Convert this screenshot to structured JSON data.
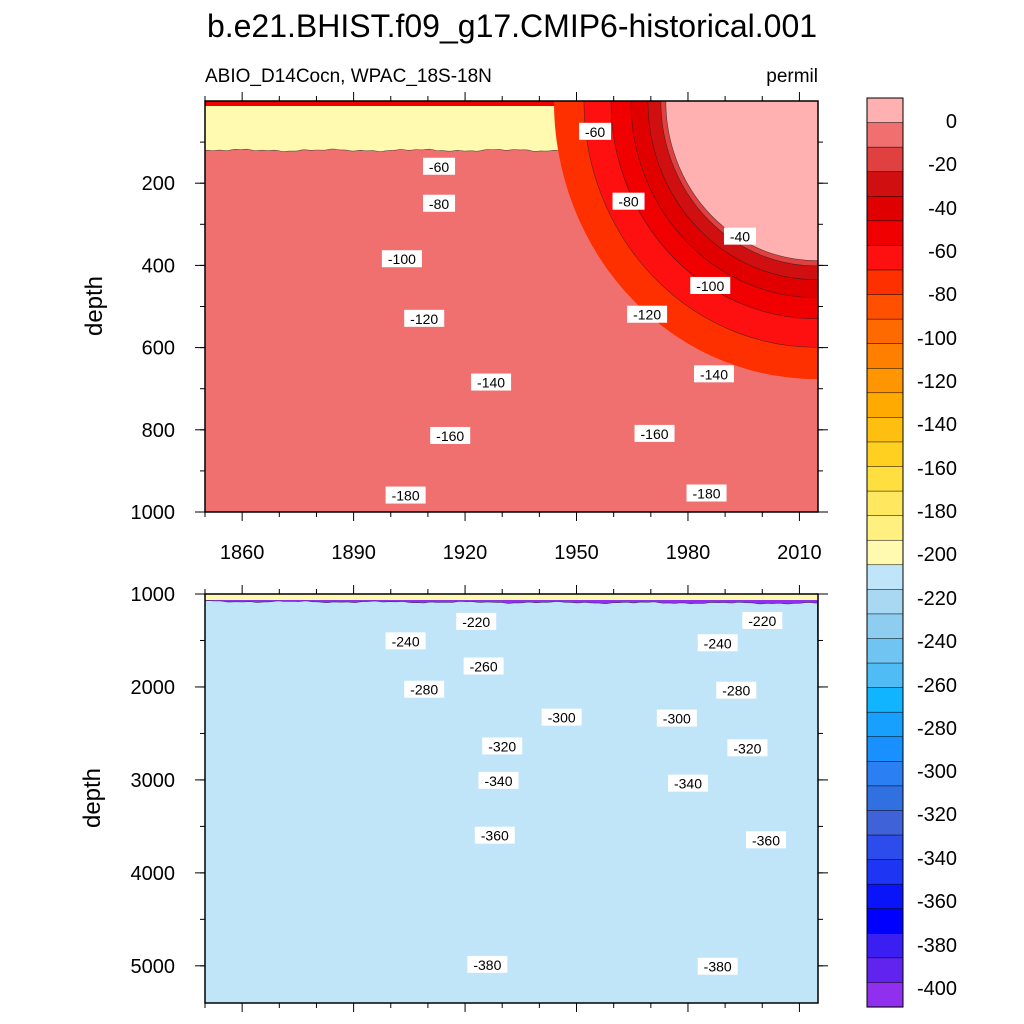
{
  "chart_data": {
    "type": "heatmap",
    "title": "b.e21.BHIST.f09_g17.CMIP6-historical.001",
    "subtitle_left": "ABIO_D14Cocn, WPAC_18S-18N",
    "subtitle_right": "permil",
    "x_range": [
      1850,
      2015
    ],
    "x_ticks": [
      1860,
      1890,
      1920,
      1950,
      1980,
      2010
    ],
    "upper_panel": {
      "ylabel": "depth",
      "ylim": [
        0,
        1000
      ],
      "y_ticks": [
        200,
        400,
        600,
        800,
        1000
      ],
      "contour_labels": [
        {
          "text": "-60",
          "x": 1913,
          "y": 160
        },
        {
          "text": "-60",
          "x": 1955,
          "y": 75
        },
        {
          "text": "-80",
          "x": 1913,
          "y": 250
        },
        {
          "text": "-80",
          "x": 1964,
          "y": 245
        },
        {
          "text": "-40",
          "x": 1994,
          "y": 330
        },
        {
          "text": "-100",
          "x": 1903,
          "y": 385
        },
        {
          "text": "-100",
          "x": 1986,
          "y": 450
        },
        {
          "text": "-120",
          "x": 1909,
          "y": 530
        },
        {
          "text": "-120",
          "x": 1969,
          "y": 520
        },
        {
          "text": "-140",
          "x": 1927,
          "y": 685
        },
        {
          "text": "-140",
          "x": 1987,
          "y": 665
        },
        {
          "text": "-160",
          "x": 1916,
          "y": 815
        },
        {
          "text": "-160",
          "x": 1971,
          "y": 810
        },
        {
          "text": "-180",
          "x": 1904,
          "y": 960
        },
        {
          "text": "-180",
          "x": 1985,
          "y": 955
        }
      ]
    },
    "lower_panel": {
      "ylabel": "depth",
      "ylim": [
        1000,
        5400
      ],
      "y_ticks": [
        1000,
        2000,
        3000,
        4000,
        5000
      ],
      "contour_labels": [
        {
          "text": "-220",
          "x": 1923,
          "y": 1300
        },
        {
          "text": "-220",
          "x": 2000,
          "y": 1290
        },
        {
          "text": "-240",
          "x": 1904,
          "y": 1510
        },
        {
          "text": "-240",
          "x": 1988,
          "y": 1530
        },
        {
          "text": "-260",
          "x": 1925,
          "y": 1780
        },
        {
          "text": "-280",
          "x": 1909,
          "y": 2030
        },
        {
          "text": "-280",
          "x": 1993,
          "y": 2040
        },
        {
          "text": "-300",
          "x": 1946,
          "y": 2330
        },
        {
          "text": "-300",
          "x": 1977,
          "y": 2340
        },
        {
          "text": "-320",
          "x": 1930,
          "y": 2640
        },
        {
          "text": "-320",
          "x": 1996,
          "y": 2660
        },
        {
          "text": "-340",
          "x": 1929,
          "y": 3010
        },
        {
          "text": "-340",
          "x": 1980,
          "y": 3040
        },
        {
          "text": "-360",
          "x": 1928,
          "y": 3600
        },
        {
          "text": "-360",
          "x": 2001,
          "y": 3650
        },
        {
          "text": "-380",
          "x": 1926,
          "y": 4990
        },
        {
          "text": "-380",
          "x": 1988,
          "y": 5010
        }
      ]
    },
    "colorbar": {
      "levels": [
        0,
        -20,
        -40,
        -60,
        -80,
        -100,
        -120,
        -140,
        -160,
        -180,
        -200,
        -220,
        -240,
        -260,
        -280,
        -300,
        -320,
        -340,
        -360,
        -380,
        -400
      ],
      "colors": [
        "#ffb0b0",
        "#f07070",
        "#e04040",
        "#d01010",
        "#e00000",
        "#f00000",
        "#ff1010",
        "#ff3000",
        "#ff5000",
        "#ff6a00",
        "#ff8000",
        "#ff9500",
        "#ffaa00",
        "#ffbf10",
        "#ffd020",
        "#ffdf40",
        "#ffe860",
        "#fff080",
        "#fffab0",
        "#c0e4f8",
        "#a8d8f2",
        "#8ccdf0",
        "#70c4f2",
        "#50bcf5",
        "#10b4ff",
        "#18a0ff",
        "#1890ff",
        "#2a80f2",
        "#3070e0",
        "#3f62d8",
        "#2c4cec",
        "#1e36f4",
        "#0a14f8",
        "#0000ff",
        "#3a1ef2",
        "#6024ee",
        "#9030ee"
      ]
    }
  }
}
